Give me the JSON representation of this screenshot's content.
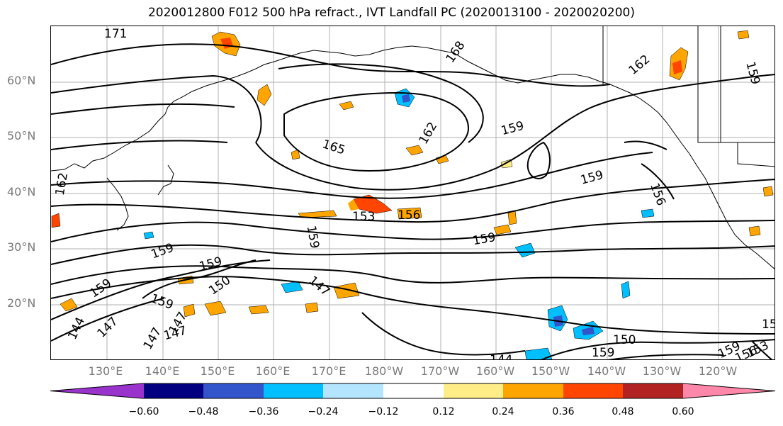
{
  "figure": {
    "title": "2020012800 F012 500 hPa refract., IVT Landfall PC (2020013100 - 2020020200)"
  },
  "map": {
    "projection": "PlateCarree",
    "lon_range": [
      120,
      -115
    ],
    "lat_range": [
      10,
      70
    ],
    "lat_labels": [
      "60°N",
      "50°N",
      "40°N",
      "30°N",
      "20°N"
    ],
    "lon_labels": [
      "130°E",
      "140°E",
      "150°E",
      "160°E",
      "170°E",
      "180°W",
      "170°W",
      "160°W",
      "150°W",
      "140°W",
      "130°W",
      "120°W"
    ],
    "gridlines": true,
    "contour_labels": [
      "171",
      "168",
      "162",
      "159",
      "165",
      "162",
      "159",
      "162",
      "153",
      "156",
      "159",
      "159",
      "156",
      "159",
      "159",
      "159",
      "150",
      "147",
      "159",
      "159",
      "144",
      "147",
      "147",
      "147",
      "147",
      "150",
      "159",
      "144",
      "159",
      "156",
      "153",
      "15"
    ]
  },
  "colorbar": {
    "ticks": [
      "−0.60",
      "−0.48",
      "−0.36",
      "−0.24",
      "−0.12",
      "0.12",
      "0.24",
      "0.36",
      "0.48",
      "0.60"
    ],
    "colors": [
      "#9933cc",
      "#000080",
      "#3355cc",
      "#00bfff",
      "#b3e5ff",
      "#ffffff",
      "#ffee88",
      "#ffa500",
      "#ff4500",
      "#b22222",
      "#ff88aa"
    ]
  }
}
